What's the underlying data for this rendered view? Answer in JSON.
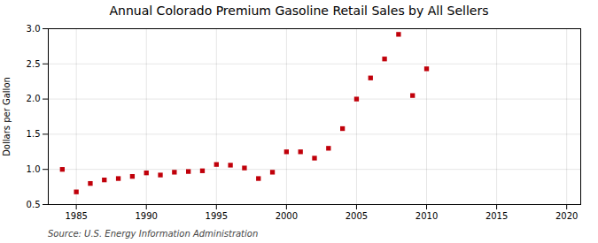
{
  "chart_data": {
    "type": "scatter",
    "title": "Annual Colorado Premium Gasoline Retail Sales by All Sellers",
    "ylabel": "Dollars per Gallon",
    "annotation": "Source: U.S. Energy Information Administration",
    "x": [
      1984,
      1985,
      1986,
      1987,
      1988,
      1989,
      1990,
      1991,
      1992,
      1993,
      1994,
      1995,
      1996,
      1997,
      1998,
      1999,
      2000,
      2001,
      2002,
      2003,
      2004,
      2005,
      2006,
      2007,
      2008,
      2009,
      2010
    ],
    "values": [
      1.0,
      0.68,
      0.8,
      0.85,
      0.87,
      0.9,
      0.95,
      0.92,
      0.96,
      0.97,
      0.98,
      1.07,
      1.06,
      1.02,
      0.87,
      0.96,
      1.25,
      1.25,
      1.16,
      1.3,
      1.58,
      2.0,
      2.3,
      2.57,
      2.92,
      2.05,
      2.43
    ],
    "color": "#c0000a",
    "marker": "square",
    "xlim": [
      1983,
      2021
    ],
    "ylim": [
      0.5,
      3.0
    ],
    "xticks": [
      1985,
      1990,
      1995,
      2000,
      2005,
      2010,
      2015,
      2020
    ],
    "yticks": [
      0.5,
      {
        "value": 1.0,
        "label": "1.0"
      },
      1.5,
      {
        "value": 2.0,
        "label": "2.0"
      },
      2.5,
      {
        "value": 3.0,
        "label": "3.0"
      }
    ],
    "grid": true
  }
}
